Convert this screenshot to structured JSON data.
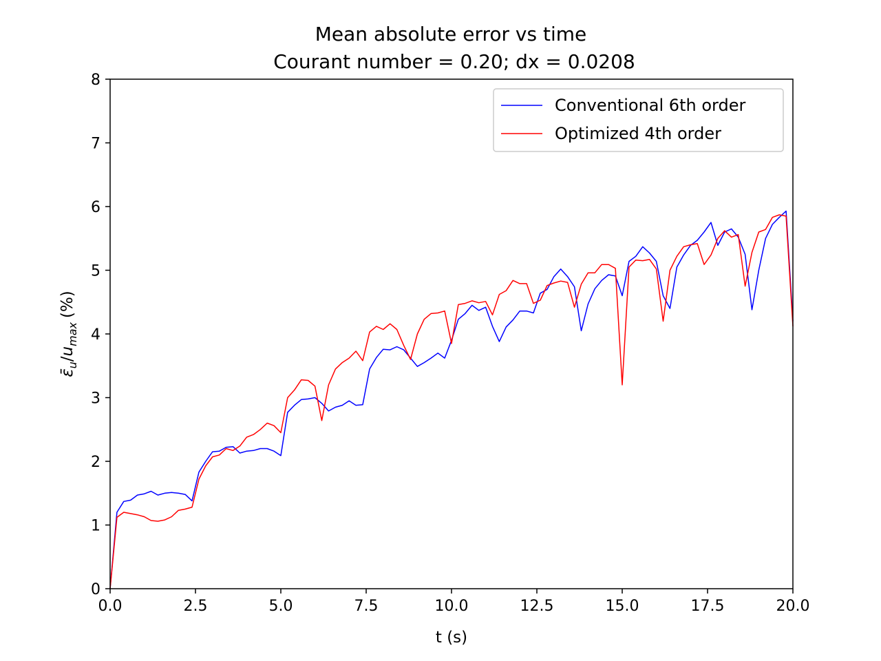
{
  "chart_data": {
    "type": "line",
    "title": "Mean absolute error vs time",
    "subtitle": "Courant number = 0.20; dx = 0.0208",
    "xlabel": "t (s)",
    "ylabel_parts": {
      "epsilon": "ε̄",
      "epsilon_sub": "u",
      "slash": "/",
      "u": "u",
      "u_sub": "max",
      "unit": "(%)"
    },
    "xlim": [
      0,
      20
    ],
    "ylim": [
      0,
      8
    ],
    "xticks": [
      0,
      2.5,
      5,
      7.5,
      10,
      12.5,
      15,
      17.5,
      20
    ],
    "xtick_labels": [
      "0.0",
      "2.5",
      "5.0",
      "7.5",
      "10.0",
      "12.5",
      "15.0",
      "17.5",
      "20.0"
    ],
    "yticks": [
      0,
      1,
      2,
      3,
      4,
      5,
      6,
      7,
      8
    ],
    "ytick_labels": [
      "0",
      "1",
      "2",
      "3",
      "4",
      "5",
      "6",
      "7",
      "8"
    ],
    "grid": false,
    "legend_position": "top-right",
    "series": [
      {
        "name": "Conventional 6th order",
        "color": "#0000ff",
        "x": [
          0,
          0.2,
          0.4,
          0.6,
          0.8,
          1.0,
          1.2,
          1.4,
          1.6,
          1.8,
          2.0,
          2.2,
          2.4,
          2.6,
          2.8,
          3.0,
          3.2,
          3.4,
          3.6,
          3.8,
          4.0,
          4.2,
          4.4,
          4.6,
          4.8,
          5.0,
          5.2,
          5.4,
          5.6,
          5.8,
          6.0,
          6.2,
          6.4,
          6.6,
          6.8,
          7.0,
          7.2,
          7.4,
          7.6,
          7.8,
          8.0,
          8.2,
          8.4,
          8.6,
          8.8,
          9.0,
          9.2,
          9.4,
          9.6,
          9.8,
          10.0,
          10.2,
          10.4,
          10.6,
          10.8,
          11.0,
          11.2,
          11.4,
          11.6,
          11.8,
          12.0,
          12.2,
          12.4,
          12.6,
          12.8,
          13.0,
          13.2,
          13.4,
          13.6,
          13.8,
          14.0,
          14.2,
          14.4,
          14.6,
          14.8,
          15.0,
          15.2,
          15.4,
          15.6,
          15.8,
          16.0,
          16.2,
          16.4,
          16.6,
          16.8,
          17.0,
          17.2,
          17.4,
          17.6,
          17.8,
          18.0,
          18.2,
          18.4,
          18.6,
          18.8,
          19.0,
          19.2,
          19.4,
          19.6,
          19.8,
          20.0
        ],
        "values": [
          0.0,
          1.2,
          1.37,
          1.39,
          1.47,
          1.49,
          1.53,
          1.47,
          1.5,
          1.51,
          1.5,
          1.48,
          1.38,
          1.83,
          2.0,
          2.15,
          2.16,
          2.22,
          2.23,
          2.13,
          2.16,
          2.17,
          2.2,
          2.2,
          2.16,
          2.09,
          2.77,
          2.88,
          2.97,
          2.98,
          3.0,
          2.91,
          2.79,
          2.85,
          2.88,
          2.95,
          2.88,
          2.89,
          3.45,
          3.63,
          3.76,
          3.75,
          3.8,
          3.75,
          3.62,
          3.49,
          3.55,
          3.62,
          3.7,
          3.62,
          3.9,
          4.23,
          4.32,
          4.45,
          4.37,
          4.42,
          4.12,
          3.88,
          4.11,
          4.22,
          4.36,
          4.36,
          4.33,
          4.64,
          4.7,
          4.9,
          5.02,
          4.9,
          4.74,
          4.05,
          4.47,
          4.71,
          4.84,
          4.93,
          4.91,
          4.6,
          5.14,
          5.22,
          5.37,
          5.27,
          5.14,
          4.6,
          4.4,
          5.05,
          5.24,
          5.39,
          5.47,
          5.6,
          5.75,
          5.39,
          5.6,
          5.65,
          5.52,
          5.25,
          4.38,
          5.0,
          5.5,
          5.72,
          5.83,
          5.93,
          4.2
        ]
      },
      {
        "name": "Optimized 4th order",
        "color": "#ff0000",
        "x": [
          0,
          0.2,
          0.4,
          0.6,
          0.8,
          1.0,
          1.2,
          1.4,
          1.6,
          1.8,
          2.0,
          2.2,
          2.4,
          2.6,
          2.8,
          3.0,
          3.2,
          3.4,
          3.6,
          3.8,
          4.0,
          4.2,
          4.4,
          4.6,
          4.8,
          5.0,
          5.2,
          5.4,
          5.6,
          5.8,
          6.0,
          6.2,
          6.4,
          6.6,
          6.8,
          7.0,
          7.2,
          7.4,
          7.6,
          7.8,
          8.0,
          8.2,
          8.4,
          8.6,
          8.8,
          9.0,
          9.2,
          9.4,
          9.6,
          9.8,
          10.0,
          10.2,
          10.4,
          10.6,
          10.8,
          11.0,
          11.2,
          11.4,
          11.6,
          11.8,
          12.0,
          12.2,
          12.4,
          12.6,
          12.8,
          13.0,
          13.2,
          13.4,
          13.6,
          13.8,
          14.0,
          14.2,
          14.4,
          14.6,
          14.8,
          15.0,
          15.2,
          15.4,
          15.6,
          15.8,
          16.0,
          16.2,
          16.4,
          16.6,
          16.8,
          17.0,
          17.2,
          17.4,
          17.6,
          17.8,
          18.0,
          18.2,
          18.4,
          18.6,
          18.8,
          19.0,
          19.2,
          19.4,
          19.6,
          19.8,
          20.0
        ],
        "values": [
          0.0,
          1.12,
          1.2,
          1.18,
          1.16,
          1.13,
          1.07,
          1.06,
          1.08,
          1.13,
          1.23,
          1.25,
          1.28,
          1.72,
          1.93,
          2.07,
          2.1,
          2.2,
          2.17,
          2.24,
          2.38,
          2.42,
          2.5,
          2.6,
          2.56,
          2.45,
          3.0,
          3.12,
          3.28,
          3.27,
          3.18,
          2.64,
          3.2,
          3.45,
          3.55,
          3.62,
          3.73,
          3.58,
          4.03,
          4.12,
          4.07,
          4.16,
          4.07,
          3.82,
          3.6,
          4.0,
          4.23,
          4.32,
          4.33,
          4.36,
          3.85,
          4.46,
          4.48,
          4.52,
          4.49,
          4.51,
          4.3,
          4.62,
          4.68,
          4.84,
          4.79,
          4.79,
          4.48,
          4.53,
          4.76,
          4.8,
          4.83,
          4.81,
          4.42,
          4.78,
          4.96,
          4.96,
          5.09,
          5.09,
          5.03,
          3.2,
          5.05,
          5.16,
          5.15,
          5.17,
          5.02,
          4.2,
          5.0,
          5.22,
          5.37,
          5.4,
          5.42,
          5.09,
          5.24,
          5.5,
          5.62,
          5.52,
          5.56,
          4.75,
          5.28,
          5.6,
          5.64,
          5.83,
          5.87,
          5.85,
          4.12
        ]
      }
    ]
  }
}
